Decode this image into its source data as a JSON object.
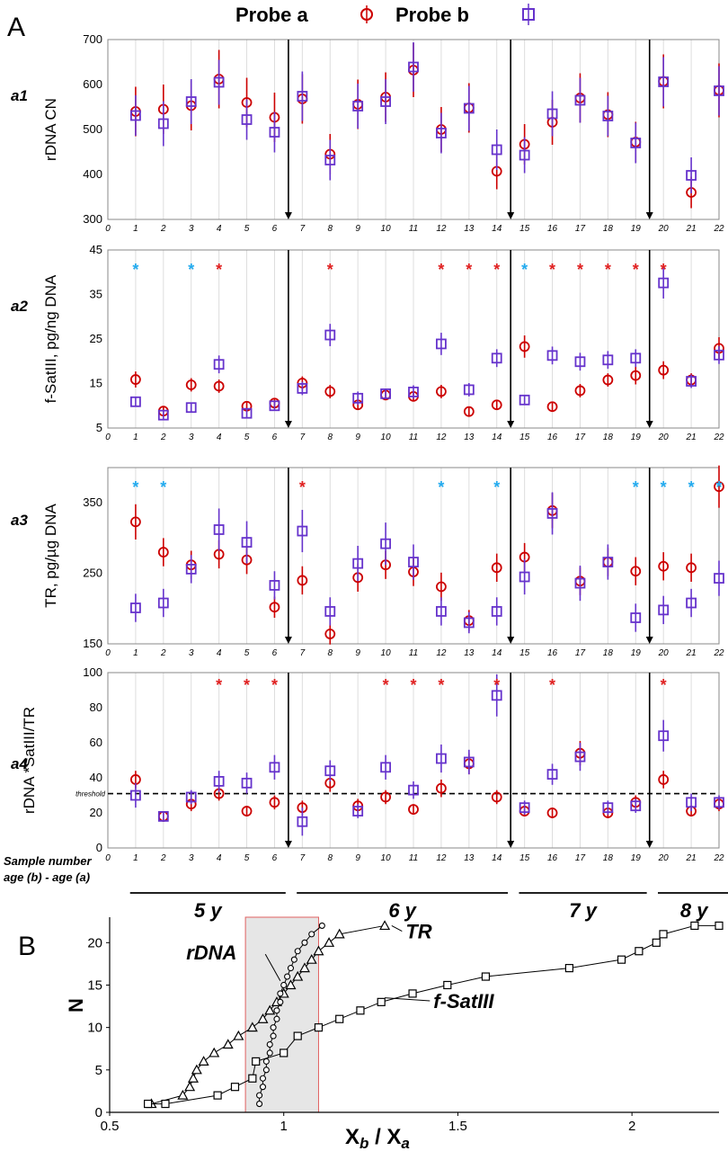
{
  "figure": {
    "panel_A_label": "A",
    "panel_B_label": "B",
    "legend": {
      "probe_a": "Probe a",
      "probe_b": "Probe b"
    },
    "colors": {
      "probe_a": "#cc0000",
      "probe_b": "#6633cc",
      "star_red": "#e02020",
      "star_blue": "#22aaee",
      "shade": "#e6e6e6",
      "shade_border": "#e06060"
    },
    "sample_row_label_1": "Sample number",
    "sample_row_label_2": "age (b) - age (a)",
    "age_groups": [
      {
        "label": "5 y",
        "from": 1,
        "to": 6
      },
      {
        "label": "6 y",
        "from": 7,
        "to": 14
      },
      {
        "label": "7 y",
        "from": 15,
        "to": 19
      },
      {
        "label": "8 y",
        "from": 20,
        "to": 22
      }
    ],
    "threshold_label": "threshold"
  },
  "chart_data": [
    {
      "id": "a1",
      "panel_label": "a1",
      "type": "scatter",
      "ylabel": "rDNA CN",
      "ylim": [
        300,
        700
      ],
      "yticks": [
        300,
        400,
        500,
        600,
        700
      ],
      "xlim": [
        0,
        22
      ],
      "x": [
        1,
        2,
        3,
        4,
        5,
        6,
        7,
        8,
        9,
        10,
        11,
        12,
        13,
        14,
        15,
        16,
        17,
        18,
        19,
        20,
        21,
        22
      ],
      "series": [
        {
          "name": "Probe a",
          "values": [
            540,
            545,
            553,
            612,
            560,
            527,
            568,
            445,
            556,
            572,
            632,
            500,
            548,
            407,
            467,
            516,
            570,
            533,
            472,
            607,
            360,
            587
          ],
          "err": [
            55,
            55,
            55,
            65,
            55,
            55,
            55,
            45,
            55,
            55,
            60,
            50,
            55,
            40,
            45,
            50,
            55,
            50,
            45,
            60,
            35,
            60
          ]
        },
        {
          "name": "Probe b",
          "values": [
            531,
            513,
            562,
            605,
            522,
            494,
            574,
            432,
            552,
            562,
            639,
            492,
            547,
            455,
            443,
            535,
            565,
            530,
            470,
            606,
            398,
            586
          ],
          "err": [
            45,
            50,
            50,
            50,
            45,
            45,
            55,
            45,
            50,
            50,
            55,
            45,
            50,
            45,
            40,
            50,
            50,
            45,
            45,
            55,
            40,
            55
          ]
        }
      ],
      "dividers_after": [
        6.5,
        14.5,
        19.5
      ],
      "stars": []
    },
    {
      "id": "a2",
      "panel_label": "a2",
      "type": "scatter",
      "ylabel": "f-SatIII, pg/ng  DNA",
      "ylim": [
        5,
        45
      ],
      "yticks": [
        5,
        15,
        25,
        35,
        45
      ],
      "xlim": [
        0,
        22
      ],
      "x": [
        1,
        2,
        3,
        4,
        5,
        6,
        7,
        8,
        9,
        10,
        11,
        12,
        13,
        14,
        15,
        16,
        17,
        18,
        19,
        20,
        21,
        22
      ],
      "series": [
        {
          "name": "Probe a",
          "values": [
            15.9,
            8.8,
            14.7,
            14.4,
            9.9,
            10.6,
            15.1,
            13.2,
            10.2,
            12.4,
            12.1,
            13.2,
            8.7,
            10.2,
            23.3,
            9.8,
            13.4,
            15.8,
            16.8,
            18.0,
            15.8,
            22.9
          ],
          "err": [
            1.8,
            1,
            1.5,
            1.5,
            1,
            1,
            1.5,
            1.5,
            1,
            1,
            1,
            1.5,
            1,
            1,
            2.5,
            1,
            1.5,
            1.5,
            2,
            2,
            1.5,
            2.5
          ]
        },
        {
          "name": "Probe b",
          "values": [
            10.9,
            7.9,
            9.6,
            19.3,
            8.3,
            10.0,
            13.9,
            25.9,
            11.7,
            12.7,
            13.1,
            23.9,
            13.6,
            20.7,
            11.3,
            21.3,
            19.9,
            20.3,
            20.7,
            37.6,
            15.5,
            21.4
          ],
          "err": [
            1,
            1,
            1,
            2,
            1,
            1,
            1.5,
            2.5,
            1.5,
            1,
            1.5,
            2.5,
            1.5,
            2,
            1,
            2,
            2,
            2,
            2,
            3.5,
            1.5,
            2
          ]
        }
      ],
      "dividers_after": [
        6.5,
        14.5,
        19.5
      ],
      "stars": [
        {
          "x": 1,
          "color": "blue"
        },
        {
          "x": 3,
          "color": "blue"
        },
        {
          "x": 4,
          "color": "red"
        },
        {
          "x": 8,
          "color": "red"
        },
        {
          "x": 12,
          "color": "red"
        },
        {
          "x": 13,
          "color": "red"
        },
        {
          "x": 14,
          "color": "red"
        },
        {
          "x": 15,
          "color": "blue"
        },
        {
          "x": 16,
          "color": "red"
        },
        {
          "x": 17,
          "color": "red"
        },
        {
          "x": 18,
          "color": "red"
        },
        {
          "x": 19,
          "color": "red"
        },
        {
          "x": 20,
          "color": "red"
        }
      ]
    },
    {
      "id": "a3",
      "panel_label": "a3",
      "type": "scatter",
      "ylabel": "TR, pg/µg  DNA",
      "ylim": [
        150,
        400
      ],
      "yticks": [
        150,
        250,
        350
      ],
      "xlim": [
        0,
        22
      ],
      "x": [
        1,
        2,
        3,
        4,
        5,
        6,
        7,
        8,
        9,
        10,
        11,
        12,
        13,
        14,
        15,
        16,
        17,
        18,
        19,
        20,
        21,
        22
      ],
      "series": [
        {
          "name": "Probe a",
          "values": [
            323,
            280,
            262,
            277,
            269,
            202,
            240,
            164,
            244,
            262,
            252,
            231,
            183,
            258,
            273,
            339,
            239,
            266,
            253,
            260,
            258,
            373
          ],
          "err": [
            25,
            20,
            20,
            20,
            20,
            15,
            20,
            15,
            20,
            20,
            20,
            20,
            15,
            20,
            20,
            25,
            20,
            20,
            20,
            20,
            20,
            30
          ]
        },
        {
          "name": "Probe b",
          "values": [
            201,
            208,
            256,
            312,
            294,
            233,
            310,
            196,
            264,
            292,
            266,
            196,
            180,
            196,
            245,
            335,
            236,
            266,
            187,
            198,
            208,
            243
          ],
          "err": [
            20,
            20,
            20,
            30,
            30,
            20,
            30,
            20,
            25,
            30,
            25,
            20,
            15,
            20,
            25,
            30,
            25,
            25,
            20,
            20,
            20,
            25
          ]
        }
      ],
      "dividers_after": [
        6.5,
        14.5,
        19.5
      ],
      "stars": [
        {
          "x": 1,
          "color": "blue"
        },
        {
          "x": 2,
          "color": "blue"
        },
        {
          "x": 7,
          "color": "red"
        },
        {
          "x": 12,
          "color": "blue"
        },
        {
          "x": 14,
          "color": "blue"
        },
        {
          "x": 19,
          "color": "blue"
        },
        {
          "x": 20,
          "color": "blue"
        },
        {
          "x": 21,
          "color": "blue"
        },
        {
          "x": 22,
          "color": "blue"
        }
      ]
    },
    {
      "id": "a4",
      "panel_label": "a4",
      "type": "scatter",
      "ylabel": "rDNA *SatIII/TR",
      "ylim": [
        0,
        100
      ],
      "yticks": [
        0,
        20,
        40,
        60,
        80,
        100
      ],
      "xlim": [
        0,
        22
      ],
      "threshold": 31,
      "x": [
        1,
        2,
        3,
        4,
        5,
        6,
        7,
        8,
        9,
        10,
        11,
        12,
        13,
        14,
        15,
        16,
        17,
        18,
        19,
        20,
        21,
        22
      ],
      "series": [
        {
          "name": "Probe a",
          "values": [
            39,
            18,
            25,
            31,
            21,
            26,
            23,
            37,
            24,
            29,
            22,
            34,
            48,
            29,
            21,
            20,
            54,
            20,
            26,
            39,
            21,
            25
          ],
          "err": [
            5,
            3,
            4,
            4,
            3,
            4,
            4,
            5,
            4,
            4,
            3,
            5,
            6,
            4,
            3,
            3,
            7,
            3,
            4,
            5,
            3,
            4
          ]
        },
        {
          "name": "Probe b",
          "values": [
            30,
            18,
            29,
            38,
            37,
            46,
            15,
            44,
            21,
            46,
            33,
            51,
            49,
            87,
            23,
            42,
            52,
            23,
            24,
            64,
            26,
            26
          ],
          "err": [
            7,
            3,
            4,
            6,
            6,
            7,
            8,
            6,
            4,
            7,
            5,
            8,
            7,
            12,
            4,
            6,
            8,
            4,
            4,
            9,
            5,
            4
          ]
        }
      ],
      "dividers_after": [
        6.5,
        14.5,
        19.5
      ],
      "stars": [
        {
          "x": 4,
          "color": "red"
        },
        {
          "x": 5,
          "color": "red"
        },
        {
          "x": 6,
          "color": "red"
        },
        {
          "x": 10,
          "color": "red"
        },
        {
          "x": 11,
          "color": "red"
        },
        {
          "x": 12,
          "color": "red"
        },
        {
          "x": 14,
          "color": "red"
        },
        {
          "x": 16,
          "color": "red"
        },
        {
          "x": 20,
          "color": "red"
        }
      ]
    },
    {
      "id": "B",
      "type": "line",
      "xlabel": "Xb / Xa",
      "xlabel_main": "X",
      "xlabel_sub1": "b",
      "xlabel_mid": " / X",
      "xlabel_sub2": "a",
      "ylabel": "N",
      "xlim": [
        0.5,
        2.25
      ],
      "ylim": [
        0,
        23
      ],
      "xticks": [
        0.5,
        1,
        1.5,
        2
      ],
      "xtick_labels": [
        "0.5",
        "1",
        "1.5",
        "2"
      ],
      "yticks": [
        0,
        5,
        10,
        15,
        20
      ],
      "shaded_region": [
        0.89,
        1.1
      ],
      "series": [
        {
          "name": "TR",
          "marker": "triangle",
          "x": [
            0.62,
            0.71,
            0.73,
            0.74,
            0.75,
            0.77,
            0.8,
            0.84,
            0.87,
            0.91,
            0.94,
            0.96,
            0.98,
            1.0,
            1.02,
            1.04,
            1.06,
            1.08,
            1.1,
            1.13,
            1.16,
            1.29
          ],
          "y": [
            1,
            2,
            3,
            4,
            5,
            6,
            7,
            8,
            9,
            10,
            11,
            12,
            13,
            14,
            15,
            16,
            17,
            18,
            19,
            20,
            21,
            22
          ]
        },
        {
          "name": "rDNA",
          "marker": "circle",
          "x": [
            0.93,
            0.93,
            0.94,
            0.94,
            0.95,
            0.95,
            0.96,
            0.96,
            0.97,
            0.97,
            0.98,
            0.98,
            0.99,
            0.99,
            1.0,
            1.01,
            1.02,
            1.03,
            1.04,
            1.06,
            1.08,
            1.11
          ],
          "y": [
            1,
            2,
            3,
            4,
            5,
            6,
            7,
            8,
            9,
            10,
            11,
            12,
            13,
            14,
            15,
            16,
            17,
            18,
            19,
            20,
            21,
            22
          ]
        },
        {
          "name": "f-SatIII",
          "marker": "square",
          "x": [
            0.61,
            0.66,
            0.81,
            0.86,
            0.91,
            0.92,
            1.0,
            1.04,
            1.1,
            1.16,
            1.22,
            1.28,
            1.37,
            1.47,
            1.58,
            1.82,
            1.97,
            2.02,
            2.07,
            2.09,
            2.18,
            2.25
          ],
          "y": [
            1,
            1,
            2,
            3,
            4,
            6,
            7,
            9,
            10,
            11,
            12,
            13,
            14,
            15,
            16,
            17,
            18,
            19,
            20,
            21,
            22,
            22
          ]
        }
      ],
      "labels": [
        {
          "text": "TR",
          "x": 1.35,
          "y": 20.5
        },
        {
          "text": "rDNA",
          "x": 0.72,
          "y": 18.0
        },
        {
          "text": "f-SatIII",
          "x": 1.43,
          "y": 12.3
        }
      ]
    }
  ]
}
